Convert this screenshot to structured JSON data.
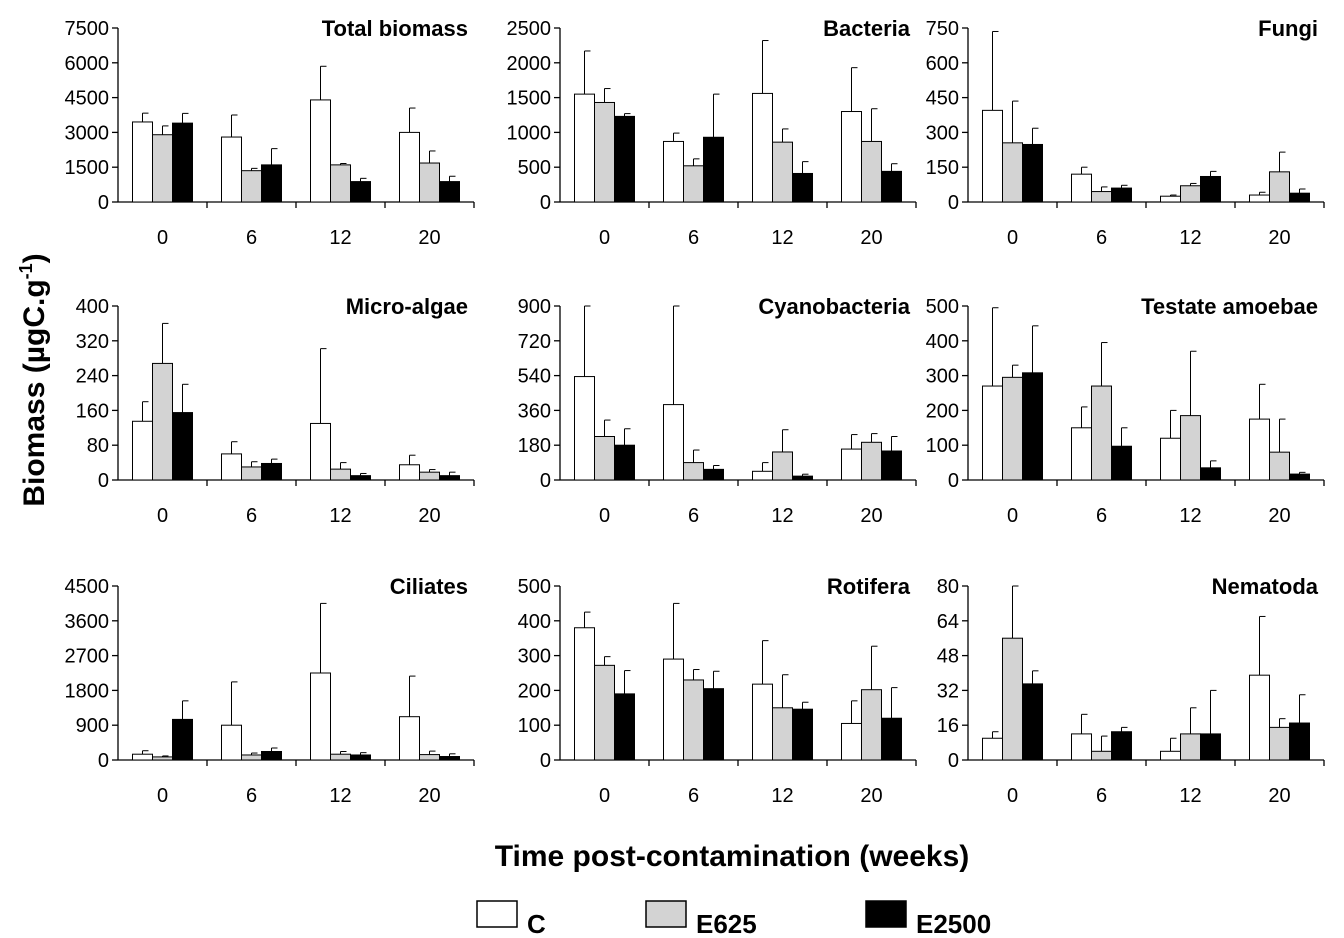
{
  "figure": {
    "ylabel_main": "Biomass (µgC.g",
    "ylabel_sup": "-1",
    "ylabel_close": ")",
    "xlabel": "Time post-contamination (weeks)"
  },
  "legend": [
    {
      "label": "C",
      "color": "#ffffff"
    },
    {
      "label": "E625",
      "color": "#d3d3d3"
    },
    {
      "label": "E2500",
      "color": "#000000"
    }
  ],
  "chart_data": [
    {
      "type": "bar",
      "title": "Total biomass",
      "categories": [
        "0",
        "6",
        "12",
        "20"
      ],
      "ylim": [
        0,
        7500
      ],
      "yticks": [
        0,
        1500,
        3000,
        4500,
        6000,
        7500
      ],
      "series": [
        {
          "name": "C",
          "values": [
            3450,
            2800,
            4400,
            3000
          ],
          "errors": [
            380,
            950,
            1450,
            1050
          ]
        },
        {
          "name": "E625",
          "values": [
            2900,
            1350,
            1600,
            1680
          ],
          "errors": [
            380,
            100,
            60,
            520
          ]
        },
        {
          "name": "E2500",
          "values": [
            3400,
            1600,
            880,
            880
          ],
          "errors": [
            420,
            700,
            140,
            230
          ]
        }
      ]
    },
    {
      "type": "bar",
      "title": "Bacteria",
      "categories": [
        "0",
        "6",
        "12",
        "20"
      ],
      "ylim": [
        0,
        2500
      ],
      "yticks": [
        0,
        500,
        1000,
        1500,
        2000,
        2500
      ],
      "series": [
        {
          "name": "C",
          "values": [
            1550,
            870,
            1560,
            1300
          ],
          "errors": [
            620,
            120,
            760,
            630
          ]
        },
        {
          "name": "E625",
          "values": [
            1430,
            520,
            860,
            870
          ],
          "errors": [
            200,
            100,
            190,
            470
          ]
        },
        {
          "name": "E2500",
          "values": [
            1230,
            930,
            410,
            440
          ],
          "errors": [
            40,
            620,
            170,
            110
          ]
        }
      ]
    },
    {
      "type": "bar",
      "title": "Fungi",
      "categories": [
        "0",
        "6",
        "12",
        "20"
      ],
      "ylim": [
        0,
        750
      ],
      "yticks": [
        0,
        150,
        300,
        450,
        600,
        750
      ],
      "series": [
        {
          "name": "C",
          "values": [
            395,
            120,
            25,
            30
          ],
          "errors": [
            340,
            30,
            5,
            12
          ]
        },
        {
          "name": "E625",
          "values": [
            255,
            45,
            70,
            130
          ],
          "errors": [
            180,
            20,
            10,
            85
          ]
        },
        {
          "name": "E2500",
          "values": [
            248,
            60,
            110,
            38
          ],
          "errors": [
            70,
            12,
            22,
            18
          ]
        }
      ]
    },
    {
      "type": "bar",
      "title": "Micro-algae",
      "categories": [
        "0",
        "6",
        "12",
        "20"
      ],
      "ylim": [
        0,
        400
      ],
      "yticks": [
        0,
        80,
        160,
        240,
        320,
        400
      ],
      "series": [
        {
          "name": "C",
          "values": [
            135,
            60,
            130,
            35
          ],
          "errors": [
            45,
            28,
            172,
            22
          ]
        },
        {
          "name": "E625",
          "values": [
            268,
            30,
            25,
            18
          ],
          "errors": [
            92,
            12,
            15,
            6
          ]
        },
        {
          "name": "E2500",
          "values": [
            155,
            38,
            10,
            10
          ],
          "errors": [
            65,
            10,
            5,
            8
          ]
        }
      ]
    },
    {
      "type": "bar",
      "title": "Cyanobacteria",
      "categories": [
        "0",
        "6",
        "12",
        "20"
      ],
      "ylim": [
        0,
        900
      ],
      "yticks": [
        0,
        180,
        360,
        540,
        720,
        900
      ],
      "series": [
        {
          "name": "C",
          "values": [
            535,
            390,
            45,
            160
          ],
          "errors": [
            365,
            510,
            45,
            75
          ]
        },
        {
          "name": "E625",
          "values": [
            225,
            90,
            145,
            195
          ],
          "errors": [
            85,
            65,
            115,
            45
          ]
        },
        {
          "name": "E2500",
          "values": [
            180,
            55,
            20,
            150
          ],
          "errors": [
            85,
            20,
            10,
            75
          ]
        }
      ]
    },
    {
      "type": "bar",
      "title": "Testate amoebae",
      "categories": [
        "0",
        "6",
        "12",
        "20"
      ],
      "ylim": [
        0,
        500
      ],
      "yticks": [
        0,
        100,
        200,
        300,
        400,
        500
      ],
      "series": [
        {
          "name": "C",
          "values": [
            270,
            150,
            120,
            175
          ],
          "errors": [
            225,
            60,
            80,
            100
          ]
        },
        {
          "name": "E625",
          "values": [
            295,
            270,
            185,
            80
          ],
          "errors": [
            35,
            125,
            185,
            95
          ]
        },
        {
          "name": "E2500",
          "values": [
            308,
            97,
            35,
            17
          ],
          "errors": [
            135,
            53,
            20,
            5
          ]
        }
      ]
    },
    {
      "type": "bar",
      "title": "Ciliates",
      "categories": [
        "0",
        "6",
        "12",
        "20"
      ],
      "ylim": [
        0,
        4500
      ],
      "yticks": [
        0,
        900,
        1800,
        2700,
        3600,
        4500
      ],
      "series": [
        {
          "name": "C",
          "values": [
            150,
            900,
            2250,
            1120
          ],
          "errors": [
            90,
            1120,
            1800,
            1050
          ]
        },
        {
          "name": "E625",
          "values": [
            80,
            130,
            150,
            140
          ],
          "errors": [
            25,
            50,
            70,
            90
          ]
        },
        {
          "name": "E2500",
          "values": [
            1050,
            220,
            130,
            90
          ],
          "errors": [
            480,
            90,
            60,
            70
          ]
        }
      ]
    },
    {
      "type": "bar",
      "title": "Rotifera",
      "categories": [
        "0",
        "6",
        "12",
        "20"
      ],
      "ylim": [
        0,
        500
      ],
      "yticks": [
        0,
        100,
        200,
        300,
        400,
        500
      ],
      "series": [
        {
          "name": "C",
          "values": [
            380,
            290,
            218,
            105
          ],
          "errors": [
            45,
            160,
            125,
            65
          ]
        },
        {
          "name": "E625",
          "values": [
            272,
            230,
            150,
            202
          ],
          "errors": [
            25,
            30,
            95,
            125
          ]
        },
        {
          "name": "E2500",
          "values": [
            190,
            205,
            146,
            120
          ],
          "errors": [
            67,
            50,
            20,
            88
          ]
        }
      ]
    },
    {
      "type": "bar",
      "title": "Nematoda",
      "categories": [
        "0",
        "6",
        "12",
        "20"
      ],
      "ylim": [
        0,
        80
      ],
      "yticks": [
        0,
        16,
        32,
        48,
        64,
        80
      ],
      "series": [
        {
          "name": "C",
          "values": [
            10,
            12,
            4,
            39
          ],
          "errors": [
            3,
            9,
            6,
            27
          ]
        },
        {
          "name": "E625",
          "values": [
            56,
            4,
            12,
            15
          ],
          "errors": [
            24,
            7,
            12,
            4
          ]
        },
        {
          "name": "E2500",
          "values": [
            35,
            13,
            12,
            17
          ],
          "errors": [
            6,
            2,
            20,
            13
          ]
        }
      ]
    }
  ]
}
